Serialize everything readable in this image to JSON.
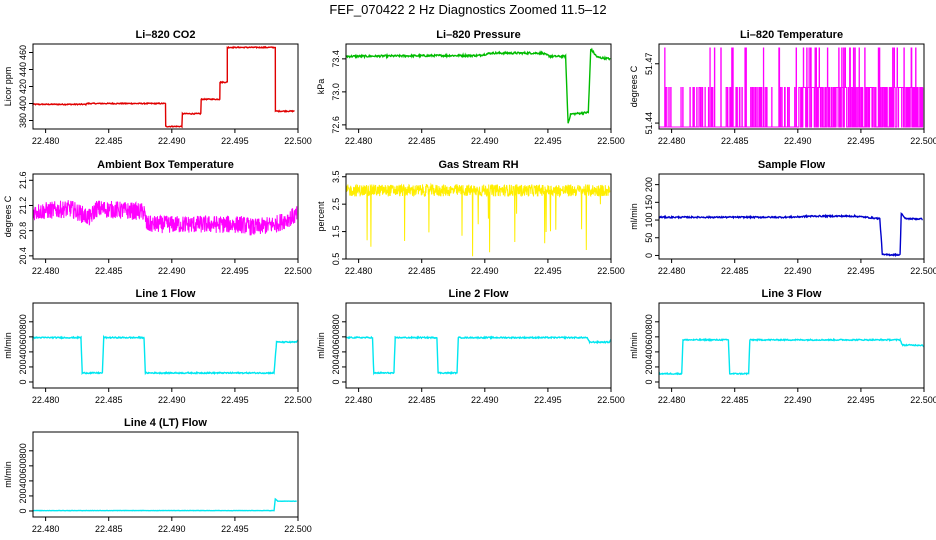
{
  "title": "FEF_070422  2 Hz Diagnostics Zoomed 11.5–12",
  "x_tick_labels": [
    "22.480",
    "22.485",
    "22.490",
    "22.495",
    "22.500"
  ],
  "chart_data": [
    {
      "type": "line",
      "title": "Li–820 CO2",
      "xlabel": "",
      "ylabel": "Licor ppm",
      "xlim": [
        22.479,
        22.5
      ],
      "ylim": [
        370,
        470
      ],
      "x_ticks": [
        22.48,
        22.485,
        22.49,
        22.495,
        22.5
      ],
      "y_ticks": [
        380,
        400,
        420,
        440,
        460
      ],
      "y_tick_labels": [
        "380",
        "400",
        "420",
        "440",
        "460"
      ],
      "color": "#e00000",
      "mode": "line",
      "noise": 0.6,
      "segments": [
        [
          22.479,
          399
        ],
        [
          22.4832,
          399
        ],
        [
          22.4832,
          400
        ],
        [
          22.4895,
          400
        ],
        [
          22.4895,
          373
        ],
        [
          22.4908,
          373
        ],
        [
          22.4908,
          388
        ],
        [
          22.4923,
          388
        ],
        [
          22.4923,
          405
        ],
        [
          22.4938,
          405
        ],
        [
          22.4938,
          425
        ],
        [
          22.4944,
          425
        ],
        [
          22.4944,
          466
        ],
        [
          22.4982,
          466
        ],
        [
          22.4982,
          391
        ],
        [
          22.4997,
          391
        ]
      ]
    },
    {
      "type": "line",
      "title": "Li–820 Pressure",
      "xlabel": "",
      "ylabel": "kPa",
      "xlim": [
        22.479,
        22.5
      ],
      "ylim": [
        72.55,
        73.58
      ],
      "x_ticks": [
        22.48,
        22.485,
        22.49,
        22.495,
        22.5
      ],
      "y_ticks": [
        72.6,
        73.0,
        73.4
      ],
      "y_tick_labels": [
        "72.6",
        "73.0",
        "73.4"
      ],
      "color": "#00bb00",
      "mode": "line",
      "noise": 0.012,
      "segments": [
        [
          22.479,
          73.43
        ],
        [
          22.487,
          73.44
        ],
        [
          22.4895,
          73.44
        ],
        [
          22.4905,
          73.47
        ],
        [
          22.4945,
          73.47
        ],
        [
          22.4952,
          73.43
        ],
        [
          22.4964,
          73.43
        ],
        [
          22.4966,
          72.62
        ],
        [
          22.4968,
          72.73
        ],
        [
          22.4982,
          72.75
        ],
        [
          22.4984,
          73.52
        ],
        [
          22.4989,
          73.42
        ],
        [
          22.4999,
          73.4
        ]
      ]
    },
    {
      "type": "line",
      "title": "Li–820 Temperature",
      "xlabel": "",
      "ylabel": "degrees C",
      "xlim": [
        22.479,
        22.5
      ],
      "ylim": [
        51.437,
        51.48
      ],
      "x_ticks": [
        22.48,
        22.485,
        22.49,
        22.495,
        22.5
      ],
      "y_ticks": [
        51.44,
        51.47
      ],
      "y_tick_labels": [
        "51.44",
        "51.47"
      ],
      "color": "#ff00ff",
      "mode": "flicker",
      "levels": [
        51.438,
        51.458,
        51.478
      ],
      "flick": [
        [
          22.479,
          0.08
        ],
        [
          22.4895,
          0.25
        ],
        [
          22.4915,
          0.55
        ],
        [
          22.4999,
          0.55
        ]
      ]
    },
    {
      "type": "line",
      "title": "Ambient Box Temperature",
      "xlabel": "",
      "ylabel": "degrees C",
      "xlim": [
        22.479,
        22.5
      ],
      "ylim": [
        20.35,
        21.7
      ],
      "x_ticks": [
        22.48,
        22.485,
        22.49,
        22.495,
        22.5
      ],
      "y_ticks": [
        20.4,
        20.8,
        21.2,
        21.6
      ],
      "y_tick_labels": [
        "20.4",
        "20.8",
        "21.2",
        "21.6"
      ],
      "color": "#ff00ff",
      "mode": "band",
      "noise": 0.14,
      "segments": [
        [
          22.479,
          21.1
        ],
        [
          22.482,
          21.15
        ],
        [
          22.4835,
          21.0
        ],
        [
          22.484,
          21.15
        ],
        [
          22.4878,
          21.1
        ],
        [
          22.488,
          20.9
        ],
        [
          22.4955,
          20.9
        ],
        [
          22.4965,
          20.85
        ],
        [
          22.4982,
          20.9
        ],
        [
          22.4999,
          21.05
        ]
      ]
    },
    {
      "type": "line",
      "title": "Gas Stream RH",
      "xlabel": "",
      "ylabel": "percent",
      "xlim": [
        22.479,
        22.5
      ],
      "ylim": [
        0.5,
        3.6
      ],
      "x_ticks": [
        22.48,
        22.485,
        22.49,
        22.495,
        22.5
      ],
      "y_ticks": [
        0.5,
        1.5,
        2.5,
        3.5
      ],
      "y_tick_labels": [
        "0.5",
        "1.5",
        "2.5",
        "3.5"
      ],
      "color": "#ffee00",
      "mode": "band",
      "noise": 0.22,
      "spikes": true,
      "segments": [
        [
          22.479,
          3.0
        ],
        [
          22.4999,
          3.0
        ]
      ]
    },
    {
      "type": "line",
      "title": "Sample Flow",
      "xlabel": "",
      "ylabel": "ml/min",
      "xlim": [
        22.479,
        22.5
      ],
      "ylim": [
        -10,
        230
      ],
      "x_ticks": [
        22.48,
        22.485,
        22.49,
        22.495,
        22.5
      ],
      "y_ticks": [
        0,
        50,
        100,
        150,
        200
      ],
      "y_tick_labels": [
        "0",
        "50",
        "100",
        "150",
        "200"
      ],
      "color": "#0000cc",
      "mode": "line",
      "noise": 2,
      "segments": [
        [
          22.479,
          108
        ],
        [
          22.4895,
          108
        ],
        [
          22.491,
          111
        ],
        [
          22.4945,
          111
        ],
        [
          22.4965,
          104
        ],
        [
          22.4967,
          2
        ],
        [
          22.4981,
          2
        ],
        [
          22.4982,
          120
        ],
        [
          22.4985,
          104
        ],
        [
          22.4999,
          103
        ]
      ]
    },
    {
      "type": "line",
      "title": "Line 1 Flow",
      "xlabel": "",
      "ylabel": "ml/min",
      "xlim": [
        22.479,
        22.5
      ],
      "ylim": [
        -80,
        1050
      ],
      "x_ticks": [
        22.48,
        22.485,
        22.49,
        22.495,
        22.5
      ],
      "y_ticks": [
        0,
        200,
        400,
        600,
        800
      ],
      "y_tick_labels": [
        "0",
        "200",
        "400",
        "600",
        "800"
      ],
      "color": "#00e6f0",
      "mode": "line",
      "noise": 8,
      "segments": [
        [
          22.479,
          590
        ],
        [
          22.4828,
          590
        ],
        [
          22.4829,
          120
        ],
        [
          22.4845,
          120
        ],
        [
          22.4846,
          590
        ],
        [
          22.4878,
          590
        ],
        [
          22.4879,
          120
        ],
        [
          22.4981,
          120
        ],
        [
          22.4983,
          530
        ],
        [
          22.4999,
          530
        ]
      ]
    },
    {
      "type": "line",
      "title": "Line 2 Flow",
      "xlabel": "",
      "ylabel": "ml/min",
      "xlim": [
        22.479,
        22.5
      ],
      "ylim": [
        -80,
        1050
      ],
      "x_ticks": [
        22.48,
        22.485,
        22.49,
        22.495,
        22.5
      ],
      "y_ticks": [
        0,
        200,
        400,
        600,
        800
      ],
      "y_tick_labels": [
        "0",
        "200",
        "400",
        "600",
        "800"
      ],
      "color": "#00e6f0",
      "mode": "line",
      "noise": 8,
      "segments": [
        [
          22.479,
          590
        ],
        [
          22.4811,
          590
        ],
        [
          22.4812,
          120
        ],
        [
          22.4828,
          120
        ],
        [
          22.4829,
          590
        ],
        [
          22.4862,
          590
        ],
        [
          22.4863,
          120
        ],
        [
          22.4878,
          120
        ],
        [
          22.4879,
          590
        ],
        [
          22.4981,
          590
        ],
        [
          22.4983,
          530
        ],
        [
          22.4999,
          530
        ]
      ]
    },
    {
      "type": "line",
      "title": "Line 3 Flow",
      "xlabel": "",
      "ylabel": "ml/min",
      "xlim": [
        22.479,
        22.5
      ],
      "ylim": [
        -80,
        1050
      ],
      "x_ticks": [
        22.48,
        22.485,
        22.49,
        22.495,
        22.5
      ],
      "y_ticks": [
        0,
        200,
        400,
        600,
        800
      ],
      "y_tick_labels": [
        "0",
        "200",
        "400",
        "600",
        "800"
      ],
      "color": "#00e6f0",
      "mode": "line",
      "noise": 8,
      "segments": [
        [
          22.479,
          110
        ],
        [
          22.4808,
          110
        ],
        [
          22.4809,
          560
        ],
        [
          22.4845,
          560
        ],
        [
          22.4846,
          110
        ],
        [
          22.4861,
          110
        ],
        [
          22.4862,
          560
        ],
        [
          22.4981,
          560
        ],
        [
          22.4983,
          490
        ],
        [
          22.4999,
          490
        ]
      ]
    },
    {
      "type": "line",
      "title": "Line 4 (LT) Flow",
      "xlabel": "",
      "ylabel": "ml/min",
      "xlim": [
        22.479,
        22.5
      ],
      "ylim": [
        -80,
        1050
      ],
      "x_ticks": [
        22.48,
        22.485,
        22.49,
        22.495,
        22.5
      ],
      "y_ticks": [
        0,
        200,
        400,
        600,
        800
      ],
      "y_tick_labels": [
        "0",
        "200",
        "400",
        "600",
        "800"
      ],
      "color": "#00e6f0",
      "mode": "line",
      "noise": 2,
      "segments": [
        [
          22.479,
          5
        ],
        [
          22.4981,
          5
        ],
        [
          22.4982,
          160
        ],
        [
          22.4984,
          130
        ],
        [
          22.4999,
          130
        ]
      ]
    }
  ]
}
